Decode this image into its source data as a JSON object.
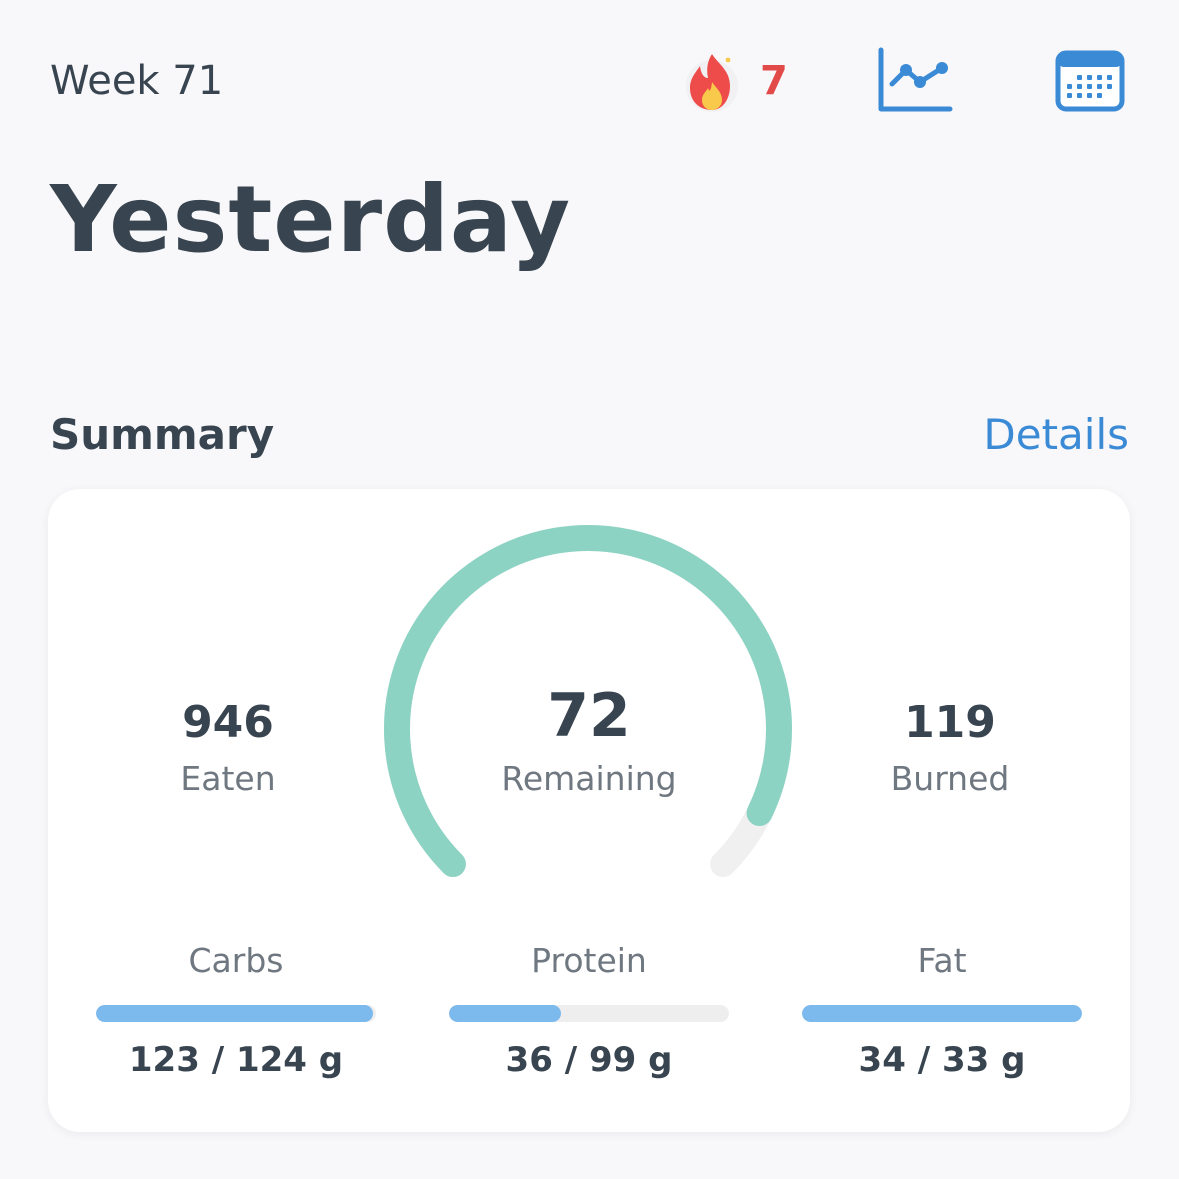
{
  "header": {
    "week_label": "Week 71",
    "streak": {
      "icon": "flame-icon",
      "count": "7",
      "color": "#e24a4a"
    },
    "chart_icon": "line-chart-icon",
    "calendar_icon": "calendar-icon",
    "title": "Yesterday"
  },
  "summary": {
    "section_title": "Summary",
    "details_label": "Details",
    "eaten": {
      "value": "946",
      "label": "Eaten"
    },
    "remaining": {
      "value": "72",
      "label": "Remaining"
    },
    "burned": {
      "value": "119",
      "label": "Burned"
    },
    "gauge_progress": 0.93,
    "gauge_color": "#8dd3c3"
  },
  "macros": [
    {
      "label": "Carbs",
      "amount": "123 / 124 g",
      "progress": 0.99
    },
    {
      "label": "Protein",
      "amount": "36 / 99 g",
      "progress": 0.4
    },
    {
      "label": "Fat",
      "amount": "34 / 33 g",
      "progress": 1.0
    }
  ],
  "colors": {
    "accent": "#3a8ad6",
    "text": "#38444f",
    "bar_fill": "#7cb9ec",
    "streak": "#e24a4a"
  }
}
